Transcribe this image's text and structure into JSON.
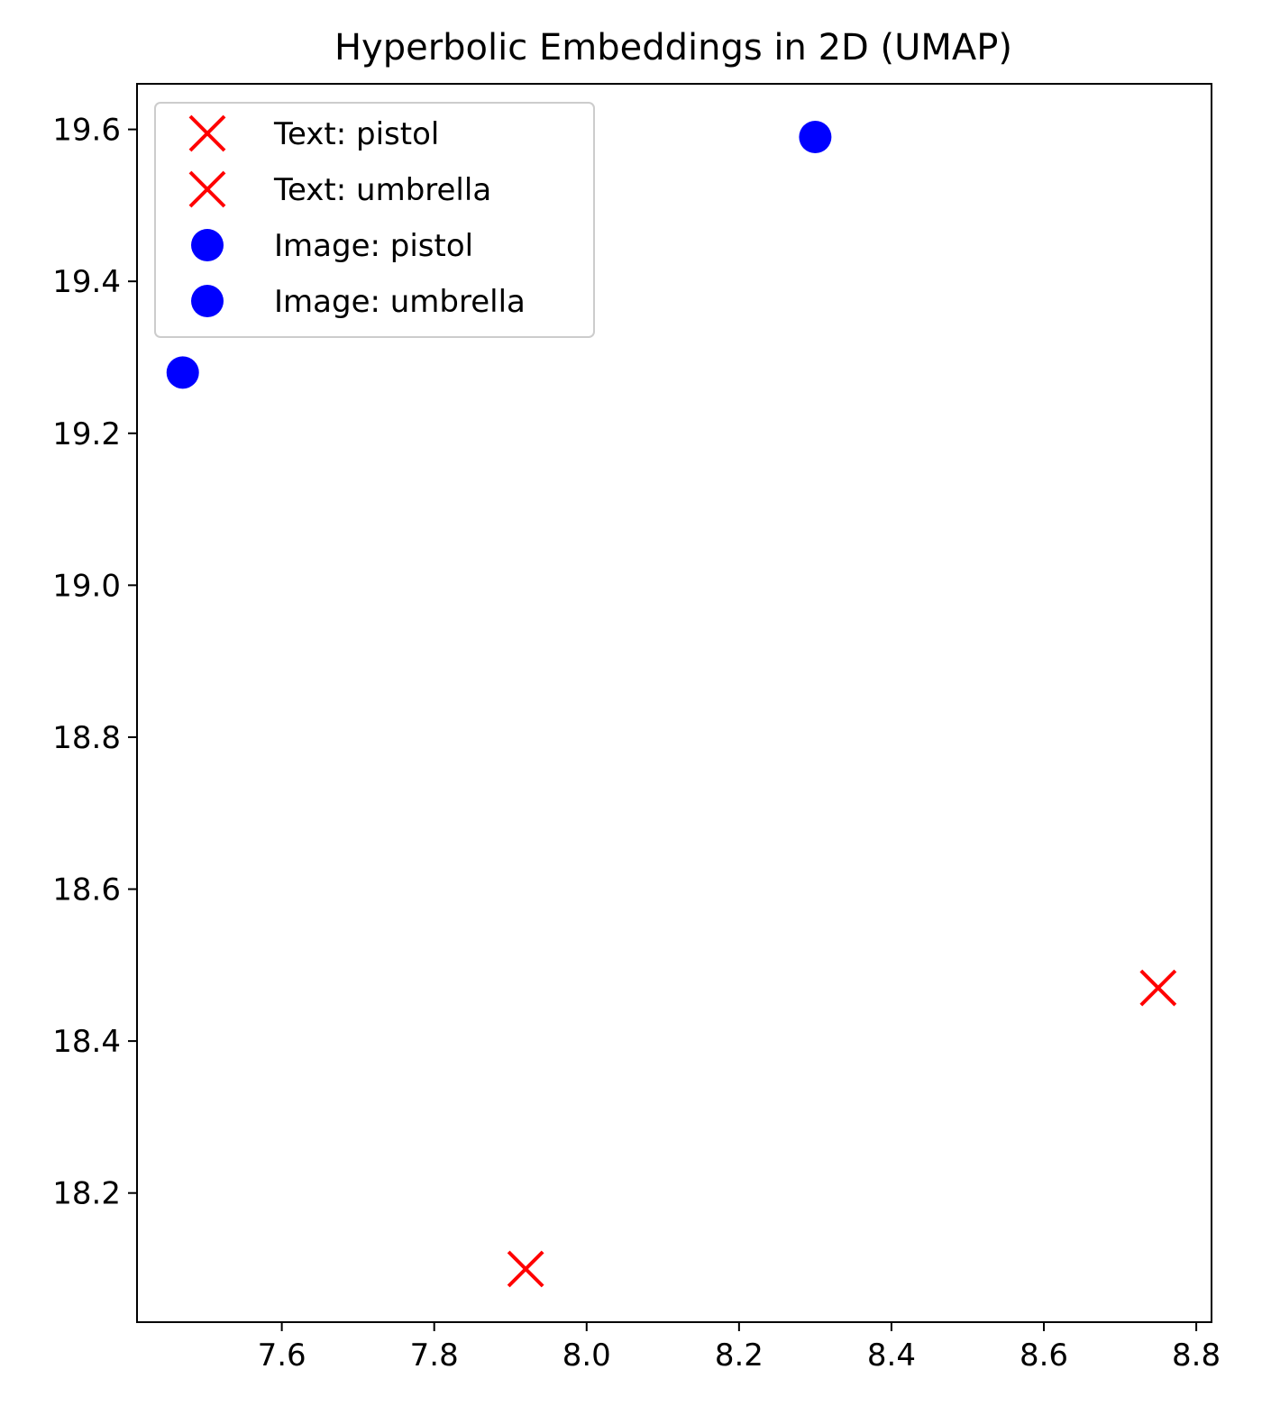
{
  "chart_data": {
    "type": "scatter",
    "title": "Hyperbolic Embeddings in 2D (UMAP)",
    "xlabel": "",
    "ylabel": "",
    "xlim": [
      7.41,
      8.82
    ],
    "ylim": [
      18.03,
      19.66
    ],
    "xticks": [
      7.6,
      7.8,
      8.0,
      8.2,
      8.4,
      8.6,
      8.8
    ],
    "xtick_labels": [
      "7.6",
      "7.8",
      "8.0",
      "8.2",
      "8.4",
      "8.6",
      "8.8"
    ],
    "yticks": [
      18.2,
      18.4,
      18.6,
      18.8,
      19.0,
      19.2,
      19.4,
      19.6
    ],
    "ytick_labels": [
      "18.2",
      "18.4",
      "18.6",
      "18.8",
      "19.0",
      "19.2",
      "19.4",
      "19.6"
    ],
    "grid": false,
    "legend_position": "top-left",
    "series": [
      {
        "name": "Text: pistol",
        "marker": "x",
        "color": "#ff0000",
        "points": [
          {
            "x": 8.75,
            "y": 18.47
          }
        ]
      },
      {
        "name": "Text: umbrella",
        "marker": "x",
        "color": "#ff0000",
        "points": [
          {
            "x": 7.92,
            "y": 18.1
          }
        ]
      },
      {
        "name": "Image: pistol",
        "marker": "circle",
        "color": "#0000ff",
        "points": [
          {
            "x": 8.3,
            "y": 19.59
          }
        ]
      },
      {
        "name": "Image: umbrella",
        "marker": "circle",
        "color": "#0000ff",
        "points": [
          {
            "x": 7.47,
            "y": 19.28
          }
        ]
      }
    ]
  }
}
